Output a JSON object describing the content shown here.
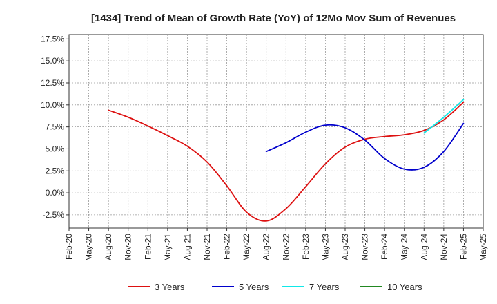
{
  "chart_data": {
    "type": "line",
    "title": "[1434]  Trend of Mean of Growth Rate (YoY) of 12Mo Mov Sum of Revenues",
    "xlabel": "",
    "ylabel": "",
    "x_ticks": [
      "Feb-20",
      "May-20",
      "Aug-20",
      "Nov-20",
      "Feb-21",
      "May-21",
      "Aug-21",
      "Nov-21",
      "Feb-22",
      "May-22",
      "Aug-22",
      "Nov-22",
      "Feb-23",
      "May-23",
      "Aug-23",
      "Nov-23",
      "Feb-24",
      "May-24",
      "Aug-24",
      "Nov-24",
      "Feb-25",
      "May-25"
    ],
    "y_ticks": [
      "17.5%",
      "15.0%",
      "12.5%",
      "10.0%",
      "7.5%",
      "5.0%",
      "2.5%",
      "0.0%",
      "-2.5%"
    ],
    "y_tick_values": [
      17.5,
      15.0,
      12.5,
      10.0,
      7.5,
      5.0,
      2.5,
      0.0,
      -2.5
    ],
    "ylim": [
      -4.0,
      18.0
    ],
    "grid": true,
    "legend_position": "bottom",
    "series": [
      {
        "name": "3 Years",
        "color": "#dd1111",
        "x_index": [
          2,
          3,
          4,
          5,
          6,
          7,
          8,
          9,
          10,
          11,
          12,
          13,
          14,
          15,
          16,
          17,
          18,
          19,
          20
        ],
        "values": [
          9.4,
          8.6,
          7.6,
          6.5,
          5.3,
          3.5,
          0.8,
          -2.2,
          -3.2,
          -1.8,
          0.7,
          3.3,
          5.2,
          6.1,
          6.4,
          6.6,
          7.1,
          8.3,
          10.3
        ]
      },
      {
        "name": "5 Years",
        "color": "#0000cc",
        "x_index": [
          10,
          11,
          12,
          13,
          14,
          15,
          16,
          17,
          18,
          19,
          20
        ],
        "values": [
          4.7,
          5.7,
          6.9,
          7.7,
          7.4,
          6.0,
          3.9,
          2.7,
          2.9,
          4.7,
          7.9
        ]
      },
      {
        "name": "7 Years",
        "color": "#11e8e8",
        "x_index": [
          18,
          19,
          20
        ],
        "values": [
          6.8,
          8.6,
          10.6
        ]
      },
      {
        "name": "10 Years",
        "color": "#228822",
        "x_index": [],
        "values": []
      }
    ]
  }
}
